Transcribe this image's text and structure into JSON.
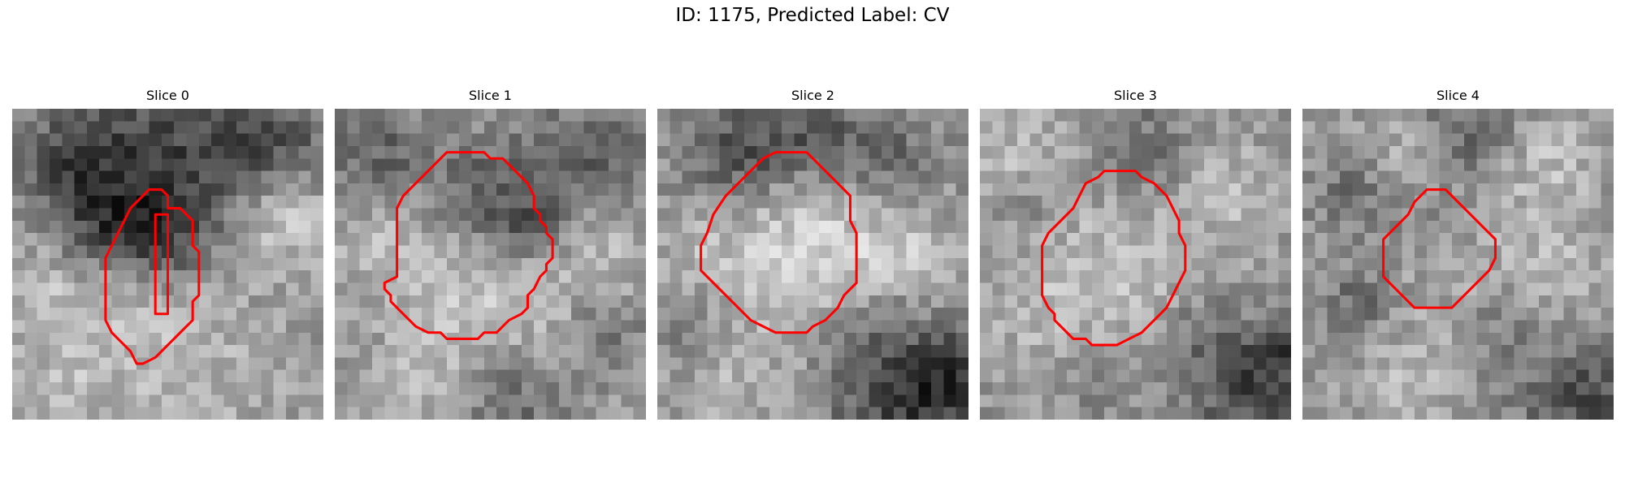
{
  "figure": {
    "title": "ID: 1175, Predicted Label: CV"
  },
  "panels": [
    {
      "title": "Slice 0",
      "image": "grayscale-microscopy-patch",
      "contour_color": "#ff0000",
      "contours": [
        [
          [
            11,
            6.5
          ],
          [
            12,
            6.5
          ],
          [
            12.5,
            7
          ],
          [
            12.5,
            8
          ],
          [
            13.5,
            8
          ],
          [
            14,
            8.5
          ],
          [
            14.5,
            9
          ],
          [
            14.5,
            11
          ],
          [
            15,
            11.5
          ],
          [
            15,
            15
          ],
          [
            14.5,
            15.5
          ],
          [
            14.5,
            17
          ],
          [
            14,
            17.5
          ],
          [
            13.5,
            18
          ],
          [
            13,
            18.5
          ],
          [
            12.5,
            19
          ],
          [
            12,
            19.5
          ],
          [
            11.5,
            20
          ],
          [
            10.5,
            20.5
          ],
          [
            10,
            20.5
          ],
          [
            9.5,
            19.5
          ],
          [
            9,
            19
          ],
          [
            8.5,
            18.5
          ],
          [
            8,
            18
          ],
          [
            7.5,
            17
          ],
          [
            7.5,
            12
          ],
          [
            8,
            11
          ],
          [
            8.5,
            10
          ],
          [
            9,
            9
          ],
          [
            9.5,
            8
          ],
          [
            10.5,
            7
          ]
        ],
        [
          [
            11.5,
            8.5
          ],
          [
            12.5,
            8.5
          ],
          [
            12.5,
            16.5
          ],
          [
            11.5,
            16.5
          ]
        ]
      ]
    },
    {
      "title": "Slice 1",
      "image": "grayscale-microscopy-patch",
      "contour_color": "#ff0000",
      "contours": [
        [
          [
            9.5,
            3.5
          ],
          [
            12,
            3.5
          ],
          [
            12.5,
            4
          ],
          [
            13.5,
            4
          ],
          [
            14.5,
            5
          ],
          [
            15,
            5.5
          ],
          [
            15.5,
            6
          ],
          [
            16,
            7
          ],
          [
            16,
            8
          ],
          [
            16.5,
            8.5
          ],
          [
            16.5,
            9
          ],
          [
            17,
            9.5
          ],
          [
            17,
            10
          ],
          [
            17.5,
            10.5
          ],
          [
            17.5,
            12
          ],
          [
            17,
            12.5
          ],
          [
            17,
            13
          ],
          [
            16.5,
            13.5
          ],
          [
            16,
            14.5
          ],
          [
            15.5,
            15
          ],
          [
            15.5,
            16
          ],
          [
            15,
            16.5
          ],
          [
            14,
            17
          ],
          [
            13.5,
            17.5
          ],
          [
            13,
            18
          ],
          [
            12,
            18
          ],
          [
            11.5,
            18.5
          ],
          [
            9,
            18.5
          ],
          [
            8.5,
            18
          ],
          [
            7.5,
            18
          ],
          [
            6.5,
            17.5
          ],
          [
            6,
            17
          ],
          [
            5.5,
            16.5
          ],
          [
            5,
            16
          ],
          [
            4.5,
            15.5
          ],
          [
            4.5,
            15
          ],
          [
            4,
            14.5
          ],
          [
            4,
            14
          ],
          [
            5,
            13.5
          ],
          [
            5,
            13
          ],
          [
            5,
            10
          ],
          [
            5,
            8
          ],
          [
            5.5,
            7
          ],
          [
            6,
            6.5
          ],
          [
            7,
            5.5
          ],
          [
            8,
            4.5
          ],
          [
            9,
            3.5
          ]
        ]
      ]
    },
    {
      "title": "Slice 2",
      "image": "grayscale-microscopy-patch",
      "contour_color": "#ff0000",
      "contours": [
        [
          [
            9.5,
            3.5
          ],
          [
            12,
            3.5
          ],
          [
            13,
            4.5
          ],
          [
            14,
            5.5
          ],
          [
            14.5,
            6
          ],
          [
            15.5,
            7
          ],
          [
            15.5,
            9
          ],
          [
            16,
            10
          ],
          [
            16,
            14
          ],
          [
            15.5,
            14.5
          ],
          [
            15,
            15
          ],
          [
            14.5,
            16
          ],
          [
            14,
            16.5
          ],
          [
            13.5,
            17
          ],
          [
            12.5,
            17.5
          ],
          [
            12,
            18
          ],
          [
            10.5,
            18
          ],
          [
            9.5,
            18
          ],
          [
            8.5,
            17.5
          ],
          [
            7.5,
            17
          ],
          [
            6.5,
            16
          ],
          [
            5.5,
            15
          ],
          [
            4.5,
            14
          ],
          [
            3.5,
            13
          ],
          [
            3.5,
            11
          ],
          [
            4,
            10
          ],
          [
            4.5,
            8.5
          ],
          [
            5.5,
            7
          ],
          [
            6.5,
            6
          ],
          [
            7.5,
            5
          ],
          [
            8.5,
            4
          ]
        ]
      ]
    },
    {
      "title": "Slice 3",
      "image": "grayscale-microscopy-patch",
      "contour_color": "#ff0000",
      "contours": [
        [
          [
            10,
            5
          ],
          [
            12.5,
            5
          ],
          [
            13,
            5.5
          ],
          [
            14,
            6
          ],
          [
            14.5,
            6.5
          ],
          [
            15,
            7
          ],
          [
            15.5,
            8
          ],
          [
            16,
            9
          ],
          [
            16,
            10
          ],
          [
            16.5,
            11
          ],
          [
            16.5,
            13
          ],
          [
            16,
            14
          ],
          [
            15.5,
            15
          ],
          [
            15,
            16
          ],
          [
            14.5,
            16.5
          ],
          [
            14,
            17
          ],
          [
            13.5,
            17.5
          ],
          [
            13,
            18
          ],
          [
            12,
            18.5
          ],
          [
            11,
            19
          ],
          [
            9,
            19
          ],
          [
            8.5,
            18.5
          ],
          [
            7.5,
            18.5
          ],
          [
            7,
            18
          ],
          [
            6.5,
            17.5
          ],
          [
            6,
            17
          ],
          [
            6,
            16.5
          ],
          [
            5.5,
            16
          ],
          [
            5,
            15
          ],
          [
            5,
            13
          ],
          [
            5,
            11
          ],
          [
            5.5,
            10
          ],
          [
            6.5,
            9
          ],
          [
            7.5,
            8
          ],
          [
            8,
            7
          ],
          [
            8.5,
            6
          ],
          [
            9.5,
            5.5
          ]
        ]
      ]
    },
    {
      "title": "Slice 4",
      "image": "grayscale-microscopy-patch",
      "contour_color": "#ff0000",
      "contours": [
        [
          [
            10,
            6.5
          ],
          [
            11.5,
            6.5
          ],
          [
            12,
            7
          ],
          [
            12.5,
            7.5
          ],
          [
            13,
            8
          ],
          [
            13.5,
            8.5
          ],
          [
            14,
            9
          ],
          [
            14.5,
            9.5
          ],
          [
            15,
            10
          ],
          [
            15.5,
            10.5
          ],
          [
            15.5,
            12
          ],
          [
            15,
            13
          ],
          [
            14.5,
            13.5
          ],
          [
            14,
            14
          ],
          [
            13.5,
            14.5
          ],
          [
            13,
            15
          ],
          [
            12.5,
            15.5
          ],
          [
            12,
            16
          ],
          [
            10,
            16
          ],
          [
            9,
            16
          ],
          [
            8.5,
            15.5
          ],
          [
            8,
            15
          ],
          [
            7.5,
            14.5
          ],
          [
            7,
            14
          ],
          [
            6.5,
            13.5
          ],
          [
            6.5,
            11
          ],
          [
            6.5,
            10.5
          ],
          [
            7,
            10
          ],
          [
            7.5,
            9.5
          ],
          [
            8,
            9
          ],
          [
            8.5,
            8.5
          ],
          [
            9,
            7.5
          ],
          [
            9.5,
            7
          ]
        ]
      ]
    }
  ]
}
